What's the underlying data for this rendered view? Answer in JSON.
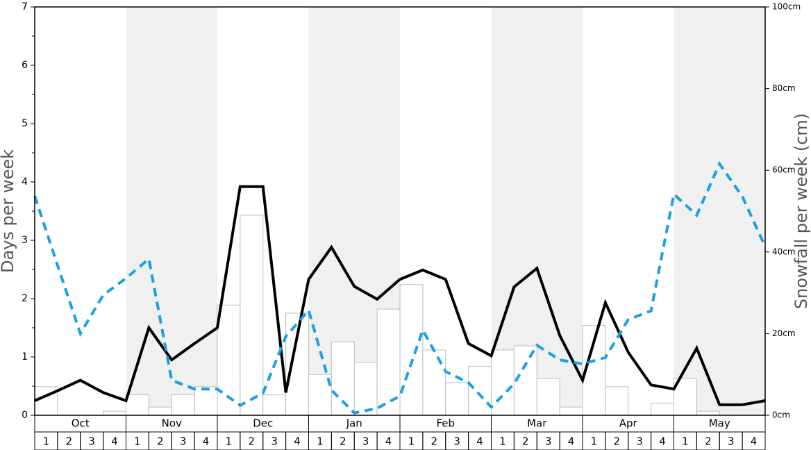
{
  "chart_data": {
    "type": "bar",
    "ylabel": "Days per week",
    "y2label": "Snowfall per week (cm)",
    "months": [
      "Oct",
      "Nov",
      "Dec",
      "Jan",
      "Feb",
      "Mar",
      "Apr",
      "May"
    ],
    "categories": [
      "1",
      "2",
      "3",
      "4",
      "1",
      "2",
      "3",
      "4",
      "1",
      "2",
      "3",
      "4",
      "1",
      "2",
      "3",
      "4",
      "1",
      "2",
      "3",
      "4",
      "1",
      "2",
      "3",
      "4",
      "1",
      "2",
      "3",
      "4",
      "1",
      "2",
      "3",
      "4"
    ],
    "x": [
      0,
      1,
      2,
      3,
      4,
      5,
      6,
      7,
      8,
      9,
      10,
      11,
      12,
      13,
      14,
      15,
      16,
      17,
      18,
      19,
      20,
      21,
      22,
      23,
      24,
      25,
      26,
      27,
      28,
      29,
      30,
      31,
      32
    ],
    "xlim": [
      0,
      32
    ],
    "ylim": [
      0,
      7
    ],
    "yticks": [
      0,
      1,
      2,
      3,
      4,
      5,
      6,
      7
    ],
    "y2lim": [
      0,
      100
    ],
    "y2ticks": [
      {
        "value": 0,
        "label": "0cm"
      },
      {
        "value": 20,
        "label": "20cm"
      },
      {
        "value": 40,
        "label": "40cm"
      },
      {
        "value": 60,
        "label": "60cm"
      },
      {
        "value": 80,
        "label": "80cm"
      },
      {
        "value": 100,
        "label": "100cm"
      }
    ],
    "series": [
      {
        "type": "bar",
        "axis": "y2",
        "color": "#ffffff",
        "values": [
          7,
          0,
          0,
          1,
          5,
          2,
          5,
          7,
          27,
          49,
          5,
          25,
          10,
          18,
          13,
          26,
          32,
          16,
          8,
          12,
          16,
          17,
          9,
          2,
          22,
          7,
          0,
          3,
          9,
          1,
          0,
          0
        ]
      },
      {
        "type": "line",
        "color": "#000000",
        "dash": false,
        "values": [
          0.25,
          0.42,
          0.6,
          0.39,
          0.25,
          1.5,
          0.95,
          1.23,
          1.5,
          3.92,
          3.92,
          0.39,
          2.33,
          2.88,
          2.21,
          1.99,
          2.33,
          2.49,
          2.33,
          1.23,
          1.02,
          2.2,
          2.52,
          1.37,
          0.6,
          1.93,
          1.08,
          0.52,
          0.45,
          1.15,
          0.18,
          0.18,
          0.25
        ]
      },
      {
        "type": "line",
        "color": "#1ba1e2",
        "dash": true,
        "values": [
          3.76,
          2.57,
          1.4,
          2.06,
          2.35,
          2.68,
          0.6,
          0.45,
          0.45,
          0.17,
          0.38,
          1.35,
          1.8,
          0.43,
          0.04,
          0.12,
          0.33,
          1.46,
          0.75,
          0.56,
          0.14,
          0.54,
          1.2,
          0.95,
          0.88,
          0.99,
          1.64,
          1.79,
          3.79,
          3.43,
          4.31,
          3.75,
          2.89
        ]
      }
    ]
  }
}
